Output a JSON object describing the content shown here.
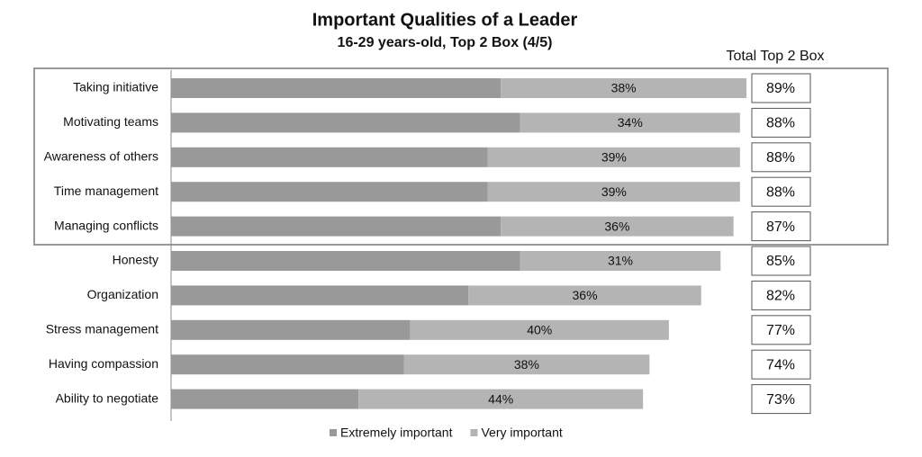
{
  "chart_data": {
    "type": "stacked-bar-horizontal",
    "title": "Important Qualities of a Leader",
    "subtitle": "16-29 years-old, Top 2 Box (4/5)",
    "categories": [
      "Taking initiative",
      "Motivating teams",
      "Awareness of others",
      "Time management",
      "Managing conflicts",
      "Honesty",
      "Organization",
      "Stress management",
      "Having compassion",
      "Ability to negotiate"
    ],
    "series": [
      {
        "name": "Extremely important",
        "color": "#999999",
        "values": [
          51,
          54,
          49,
          49,
          51,
          54,
          46,
          37,
          36,
          29
        ]
      },
      {
        "name": "Very important",
        "color": "#b4b4b4",
        "values": [
          38,
          34,
          39,
          39,
          36,
          31,
          36,
          40,
          38,
          44
        ],
        "value_labels": [
          "38%",
          "34%",
          "39%",
          "39%",
          "36%",
          "31%",
          "36%",
          "40%",
          "38%",
          "44%"
        ]
      }
    ],
    "totals": {
      "title": "Total Top 2 Box",
      "values": [
        89,
        88,
        88,
        88,
        87,
        85,
        82,
        77,
        74,
        73
      ],
      "value_labels": [
        "89%",
        "88%",
        "88%",
        "88%",
        "87%",
        "85%",
        "82%",
        "77%",
        "74%",
        "73%"
      ]
    },
    "xlim": [
      0,
      100
    ],
    "legend": "bottom"
  }
}
